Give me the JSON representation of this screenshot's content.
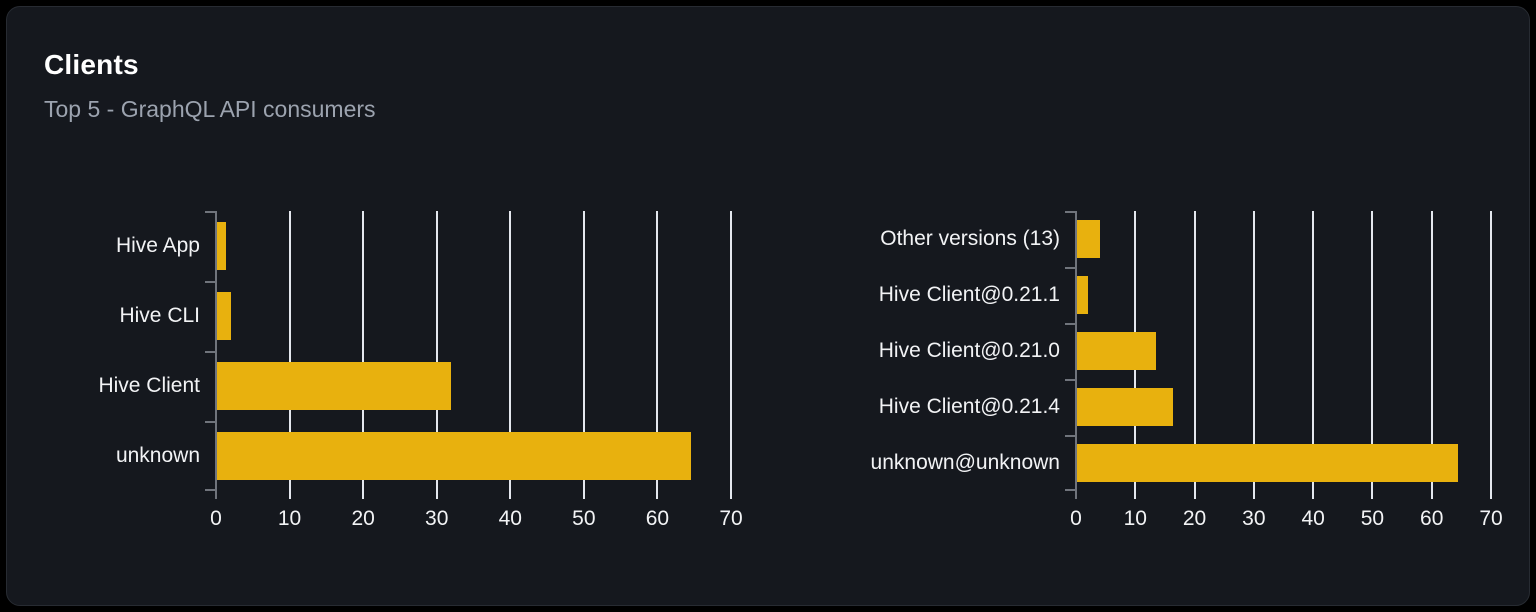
{
  "card": {
    "title": "Clients",
    "subtitle": "Top 5 - GraphQL API consumers"
  },
  "colors": {
    "bar": "#e8b10e",
    "page_background": "#000000",
    "card_background": "#15181e",
    "card_border": "#272b32",
    "gridline": "#e4e7ee",
    "axis_line": "#70747c",
    "title_text": "#ffffff",
    "subtitle_text": "#9ca3af",
    "label_text": "#f2f3f5"
  },
  "chart_data": [
    {
      "type": "bar",
      "orientation": "horizontal",
      "categories": [
        "Hive App",
        "Hive CLI",
        "Hive Client",
        "unknown"
      ],
      "values": [
        1.4,
        2,
        32,
        64.5
      ],
      "xlabel": "",
      "ylabel": "",
      "xlim": [
        0,
        70
      ],
      "xticks": [
        0,
        10,
        20,
        30,
        40,
        50,
        60,
        70
      ],
      "grid": true,
      "legend": "none",
      "bar_color": "#e8b10e"
    },
    {
      "type": "bar",
      "orientation": "horizontal",
      "categories": [
        "Other versions (13)",
        "Hive Client@0.21.1",
        "Hive Client@0.21.0",
        "Hive Client@0.21.4",
        "unknown@unknown"
      ],
      "values": [
        4,
        2,
        13.5,
        16.3,
        64.5
      ],
      "xlabel": "",
      "ylabel": "",
      "xlim": [
        0,
        70
      ],
      "xticks": [
        0,
        10,
        20,
        30,
        40,
        50,
        60,
        70
      ],
      "grid": true,
      "legend": "none",
      "bar_color": "#e8b10e"
    }
  ]
}
